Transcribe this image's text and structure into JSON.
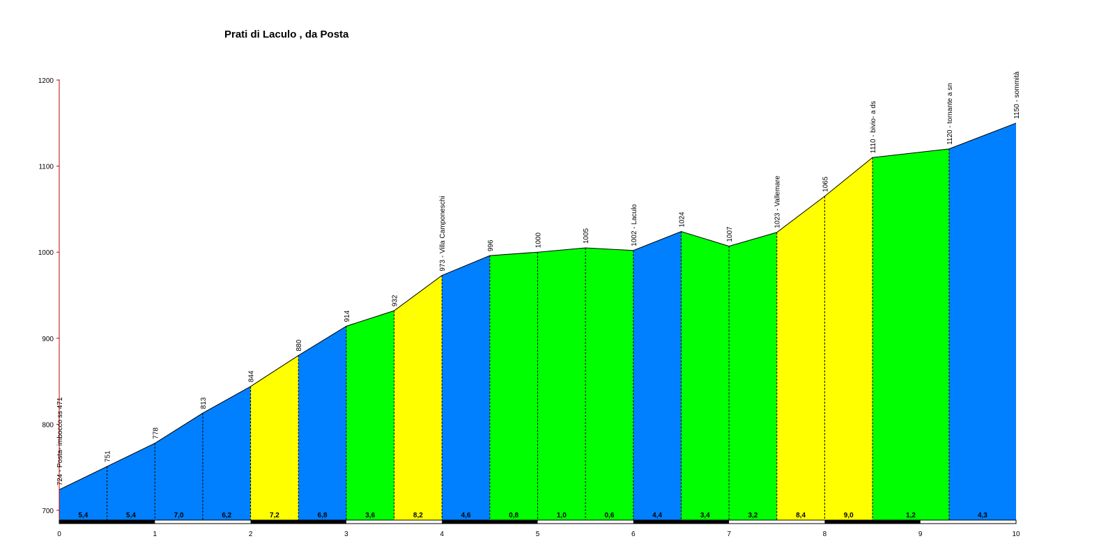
{
  "chart_data": {
    "type": "area",
    "title": "Prati di Laculo , da Posta",
    "xlabel": "",
    "ylabel": "",
    "xlim": [
      0,
      10
    ],
    "ylim": [
      690,
      1200
    ],
    "x_ticks": [
      0,
      1,
      2,
      3,
      4,
      5,
      6,
      7,
      8,
      9,
      10
    ],
    "y_ticks": [
      700,
      800,
      900,
      1000,
      1100,
      1200
    ],
    "grid": false,
    "points": [
      {
        "x": 0.0,
        "y": 724,
        "label": "724 - Posta- imbocco ss 471"
      },
      {
        "x": 0.5,
        "y": 751,
        "label": "751"
      },
      {
        "x": 1.0,
        "y": 778,
        "label": "778"
      },
      {
        "x": 1.5,
        "y": 813,
        "label": "813"
      },
      {
        "x": 2.0,
        "y": 844,
        "label": "844"
      },
      {
        "x": 2.5,
        "y": 880,
        "label": "880"
      },
      {
        "x": 3.0,
        "y": 914,
        "label": "914"
      },
      {
        "x": 3.5,
        "y": 932,
        "label": "932"
      },
      {
        "x": 4.0,
        "y": 973,
        "label": "973 - Villa Camponeschi"
      },
      {
        "x": 4.5,
        "y": 996,
        "label": "996"
      },
      {
        "x": 5.0,
        "y": 1000,
        "label": "1000"
      },
      {
        "x": 5.5,
        "y": 1005,
        "label": "1005"
      },
      {
        "x": 6.0,
        "y": 1002,
        "label": "1002 - Laculo"
      },
      {
        "x": 6.5,
        "y": 1024,
        "label": "1024"
      },
      {
        "x": 7.0,
        "y": 1007,
        "label": "1007"
      },
      {
        "x": 7.5,
        "y": 1023,
        "label": "1023 - Vallemare"
      },
      {
        "x": 8.0,
        "y": 1065,
        "label": "1065"
      },
      {
        "x": 8.5,
        "y": 1110,
        "label": "1110 - bivio- a ds"
      },
      {
        "x": 9.3,
        "y": 1120,
        "label": "1120 - tornante a sn"
      },
      {
        "x": 10.0,
        "y": 1150,
        "label": "1150 - sommità"
      }
    ],
    "segments": [
      {
        "grade": "5,4",
        "color": "#0080ff"
      },
      {
        "grade": "5,4",
        "color": "#0080ff"
      },
      {
        "grade": "7,0",
        "color": "#0080ff"
      },
      {
        "grade": "6,2",
        "color": "#0080ff"
      },
      {
        "grade": "7,2",
        "color": "#ffff00"
      },
      {
        "grade": "6,8",
        "color": "#0080ff"
      },
      {
        "grade": "3,6",
        "color": "#00ff00"
      },
      {
        "grade": "8,2",
        "color": "#ffff00"
      },
      {
        "grade": "4,6",
        "color": "#0080ff"
      },
      {
        "grade": "0,8",
        "color": "#00ff00"
      },
      {
        "grade": "1,0",
        "color": "#00ff00"
      },
      {
        "grade": "0,6",
        "color": "#00ff00"
      },
      {
        "grade": "4,4",
        "color": "#0080ff"
      },
      {
        "grade": "3,4",
        "color": "#00ff00"
      },
      {
        "grade": "3,2",
        "color": "#00ff00"
      },
      {
        "grade": "8,4",
        "color": "#ffff00"
      },
      {
        "grade": "9,0",
        "color": "#ffff00"
      },
      {
        "grade": "1,2",
        "color": "#00ff00"
      },
      {
        "grade": "4,3",
        "color": "#0080ff"
      }
    ]
  }
}
